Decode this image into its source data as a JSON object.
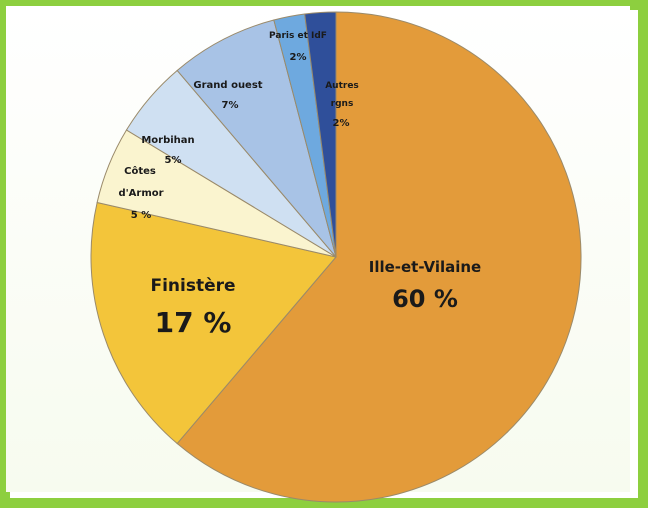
{
  "chart_data": {
    "type": "pie",
    "title": "",
    "slices": [
      {
        "name": "Ille-et-Vilaine",
        "value": 60,
        "value_label": "60 %",
        "color": "#e39b3a"
      },
      {
        "name": "Finistère",
        "value": 17,
        "value_label": "17 %",
        "color": "#f3c53a"
      },
      {
        "name": "Côtes d'Armor",
        "value": 5,
        "value_label": "5 %",
        "color": "#faf4cf"
      },
      {
        "name": "Morbihan",
        "value": 5,
        "value_label": "5%",
        "color": "#cfe0f2"
      },
      {
        "name": "Grand ouest",
        "value": 7,
        "value_label": "7%",
        "color": "#a8c3e6"
      },
      {
        "name": "Paris et IdF",
        "value": 2,
        "value_label": "2%",
        "color": "#6ea9df"
      },
      {
        "name": "Autres régions",
        "value": 2,
        "value_label": "2%",
        "color": "#2f4f9a"
      }
    ],
    "label_text": {
      "ille": [
        "Ille-et-Vilaine",
        "60 %"
      ],
      "finistere": [
        "Finistère",
        "17 %"
      ],
      "cotes": [
        "Côtes",
        "d'Armor",
        "5 %"
      ],
      "morbihan": [
        "Morbihan",
        "5%"
      ],
      "grandouest": [
        "Grand ouest",
        "7%"
      ],
      "paris": [
        "Paris et IdF",
        "2%"
      ],
      "autres": [
        "Autres",
        "rgns",
        "2%"
      ]
    },
    "start_angle_deg": 0,
    "direction": "clockwise",
    "legend": "none",
    "colors": {
      "border": "#8dcf3f",
      "slice_stroke": "#9a8a6a"
    }
  }
}
